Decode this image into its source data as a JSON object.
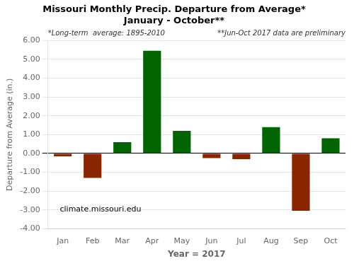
{
  "chart_data": {
    "type": "bar",
    "title": [
      "Missouri Monthly Precip. Departure from Average*",
      "January - October**"
    ],
    "subtitle": [
      "*Long-term  average: 1895-2010",
      "**Jun-Oct 2017 data are preliminary"
    ],
    "annotations": [
      "climate.missouri.edu"
    ],
    "x_label": "Year = 2017",
    "y_label": "Departure from Average (in.)",
    "categories": [
      "Jan",
      "Feb",
      "Mar",
      "Apr",
      "May",
      "Jun",
      "Jul",
      "Aug",
      "Sep",
      "Oct"
    ],
    "values": [
      -0.15,
      -1.3,
      0.6,
      5.45,
      1.2,
      -0.25,
      -0.3,
      1.4,
      -3.05,
      0.8
    ],
    "colors": [
      "#8B2500",
      "#8B2500",
      "#006400",
      "#006400",
      "#006400",
      "#8B2500",
      "#8B2500",
      "#006400",
      "#8B2500",
      "#006400"
    ],
    "ylim": [
      -4.0,
      6.0
    ],
    "yticks": [
      {
        "value": -4,
        "label": "-4.00"
      },
      {
        "value": -3,
        "label": "-3.00"
      },
      {
        "value": -2,
        "label": "-2.00"
      },
      {
        "value": -1,
        "label": "-1.00"
      },
      {
        "value": 0,
        "label": "0.00"
      },
      {
        "value": 1,
        "label": "1.00"
      },
      {
        "value": 2,
        "label": "2.00"
      },
      {
        "value": 3,
        "label": "3.00"
      },
      {
        "value": 4,
        "label": "4.00"
      },
      {
        "value": 5,
        "label": "5.00"
      },
      {
        "value": 6,
        "label": "6.00"
      }
    ],
    "grid": true
  }
}
